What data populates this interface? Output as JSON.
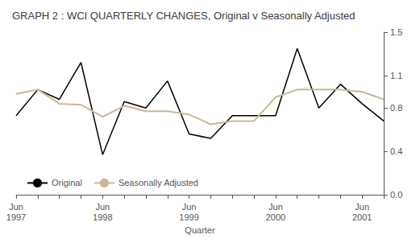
{
  "chart_data": {
    "type": "line",
    "title": "GRAPH 2 : WCI QUARTERLY CHANGES, Original v Seasonally Adjusted",
    "x_label": "Quarter",
    "categories": [
      "Jun\n1997",
      null,
      null,
      null,
      "Jun\n1998",
      null,
      null,
      null,
      "Jun\n1999",
      null,
      null,
      null,
      "Jun\n2000",
      null,
      null,
      null,
      "Jun\n2001",
      null
    ],
    "series": [
      {
        "name": "Original",
        "color": "#000000",
        "values": [
          0.73,
          0.97,
          0.88,
          1.22,
          0.37,
          0.86,
          0.8,
          1.05,
          0.56,
          0.52,
          0.73,
          0.73,
          0.73,
          1.35,
          0.8,
          1.02,
          0.84,
          0.68
        ]
      },
      {
        "name": "Seasonally Adjusted",
        "color": "#c8b896",
        "values": [
          0.93,
          0.97,
          0.84,
          0.83,
          0.72,
          0.82,
          0.77,
          0.77,
          0.74,
          0.65,
          0.68,
          0.68,
          0.9,
          0.97,
          0.97,
          0.97,
          0.95,
          0.88
        ]
      }
    ],
    "ylim": [
      0.0,
      1.5
    ],
    "yticks": [
      {
        "value": 0,
        "label": "0.0"
      },
      0.4,
      0.8,
      1.1,
      1.5
    ],
    "grid": false,
    "legend": "lower left"
  }
}
